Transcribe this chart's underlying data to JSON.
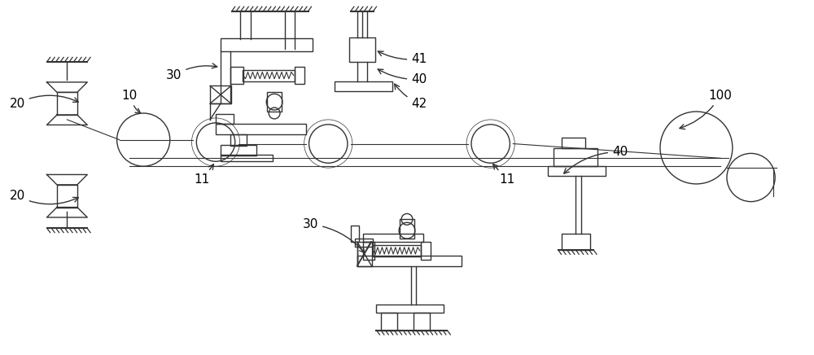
{
  "bg_color": "#ffffff",
  "lc": "#333333",
  "lw": 1.0,
  "fs": 11,
  "fig_w": 10.0,
  "fig_h": 4.36
}
